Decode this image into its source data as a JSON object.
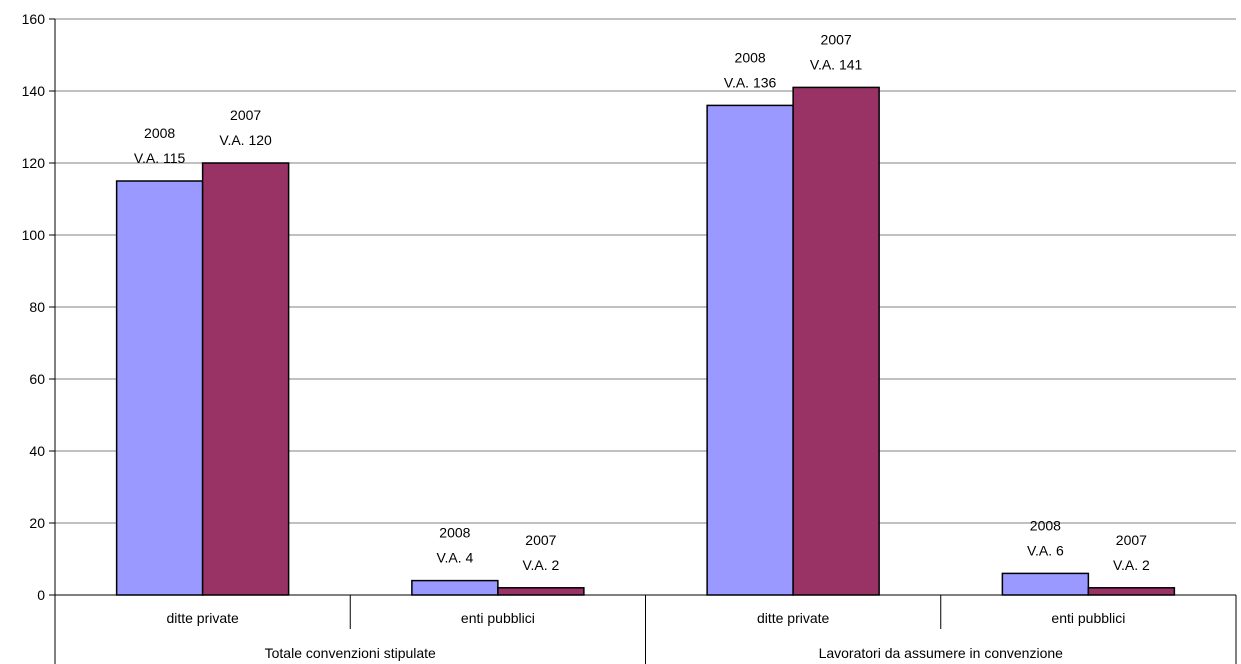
{
  "chart_data": {
    "type": "bar",
    "title": "",
    "xlabel": "",
    "ylabel": "",
    "ylim": [
      0,
      160
    ],
    "yticks": [
      0,
      20,
      40,
      60,
      80,
      100,
      120,
      140,
      160
    ],
    "grid": true,
    "legend": "none",
    "groups": [
      "Totale convenzioni stipulate",
      "Lavoratori da assumere in convenzione"
    ],
    "categories": [
      {
        "label": "ditte private",
        "group": 0
      },
      {
        "label": "enti pubblici",
        "group": 0
      },
      {
        "label": "ditte private",
        "group": 1
      },
      {
        "label": "enti pubblici",
        "group": 1
      }
    ],
    "series": [
      {
        "year": "2008",
        "color": "#9999ff",
        "values": [
          115,
          4,
          136,
          6
        ],
        "labels": [
          "V.A. 115",
          "V.A. 4",
          "V.A. 136",
          "V.A. 6"
        ]
      },
      {
        "year": "2007",
        "color": "#993366",
        "values": [
          120,
          2,
          141,
          2
        ],
        "labels": [
          "V.A. 120",
          "V.A. 2",
          "V.A. 141",
          "V.A. 2"
        ]
      }
    ]
  }
}
